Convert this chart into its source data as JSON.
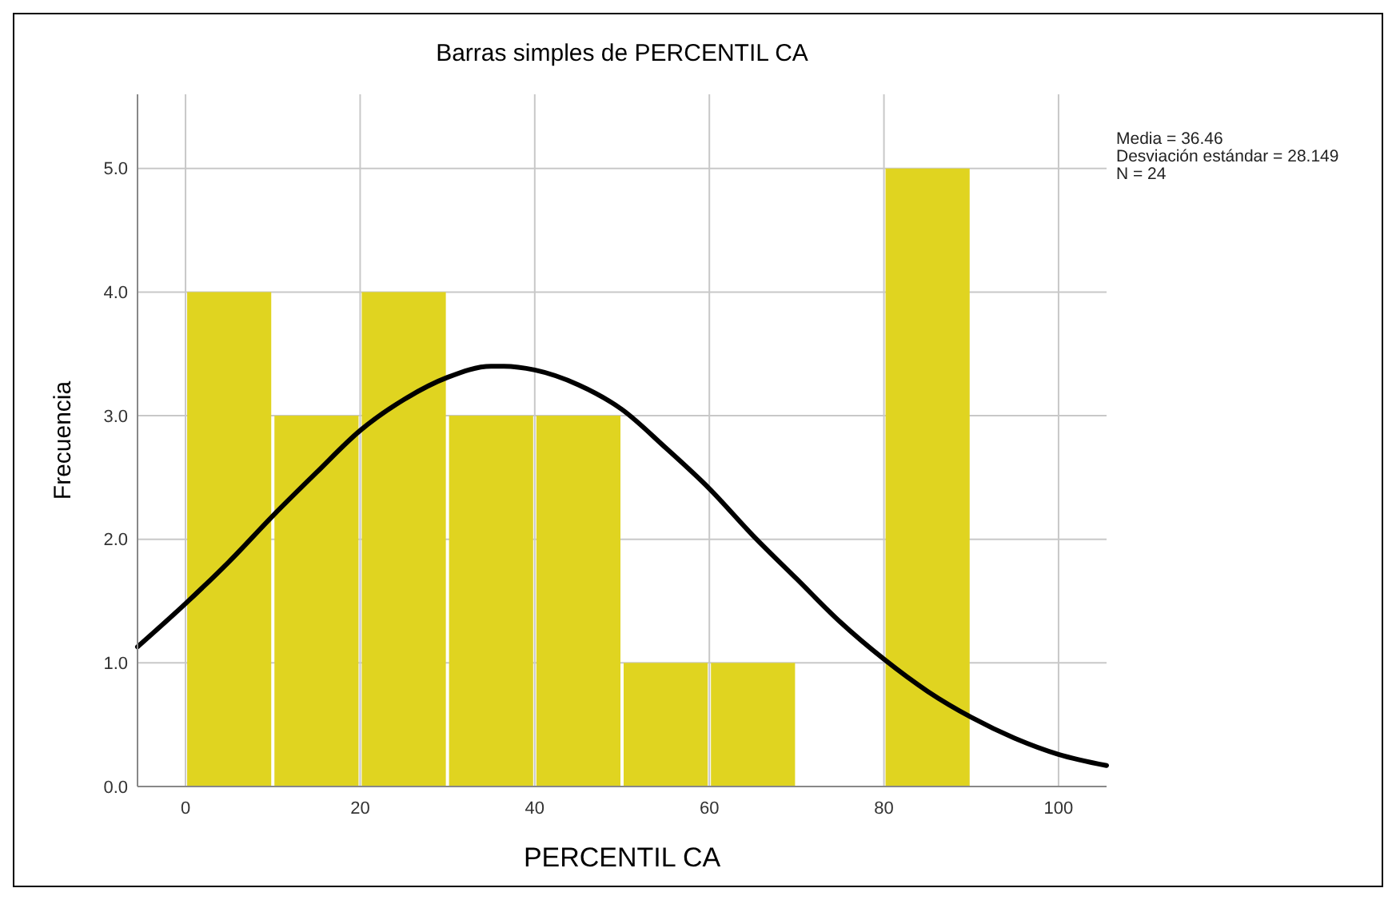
{
  "chart_data": {
    "type": "histogram",
    "title": "Barras simples de PERCENTIL CA",
    "xlabel": "PERCENTIL CA",
    "ylabel": "Frecuencia",
    "annotations": [
      "Media = 36.46",
      "Desviación estándar = 28.149",
      "N = 24"
    ],
    "bins": [
      0,
      10,
      20,
      30,
      40,
      50,
      60,
      70,
      80,
      90
    ],
    "series": [
      {
        "color": "#e0d420",
        "values": [
          4,
          3,
          4,
          3,
          3,
          1,
          1,
          0,
          5
        ]
      },
      {
        "type": "line",
        "color": "#000000",
        "x": [
          -5.5,
          0,
          5,
          10,
          15,
          20,
          25,
          30,
          35,
          36.46,
          40,
          45,
          50,
          55,
          60,
          65,
          70,
          75,
          80,
          85,
          90,
          95,
          100,
          105.5
        ],
        "values": [
          1.13,
          1.48,
          1.82,
          2.19,
          2.54,
          2.88,
          3.13,
          3.31,
          3.4,
          3.4,
          3.37,
          3.25,
          3.05,
          2.74,
          2.41,
          2.03,
          1.68,
          1.33,
          1.03,
          0.77,
          0.56,
          0.39,
          0.26,
          0.17
        ]
      }
    ],
    "xlim": [
      -5.5,
      105.5
    ],
    "xticks": [
      0,
      20,
      40,
      60,
      80,
      100
    ],
    "ylim": [
      0,
      5.6
    ],
    "yticks": [
      {
        "value": 0,
        "label": "0.0"
      },
      {
        "value": 1,
        "label": "1.0"
      },
      {
        "value": 2,
        "label": "2.0"
      },
      {
        "value": 3,
        "label": "3.0"
      },
      {
        "value": 4,
        "label": "4.0"
      },
      {
        "value": 5,
        "label": "5.0"
      }
    ],
    "grid": true,
    "line_style": "solid",
    "marker": "none"
  }
}
